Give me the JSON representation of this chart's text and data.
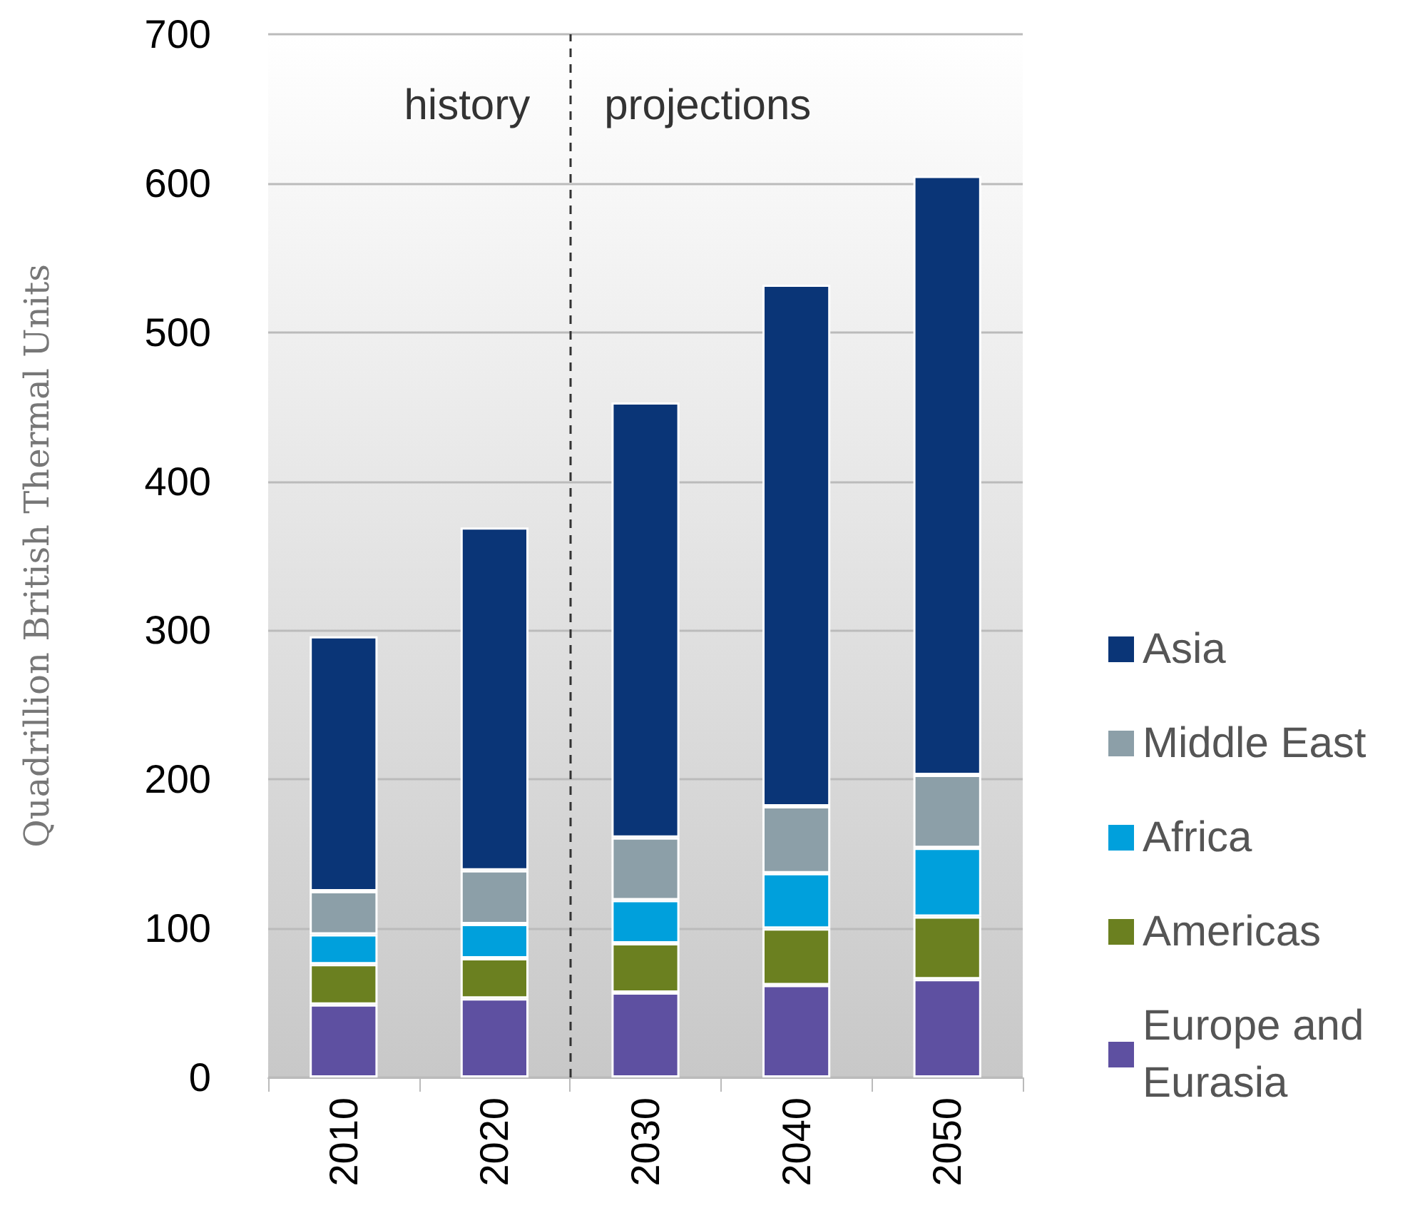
{
  "chart_data": {
    "type": "bar",
    "stacked": true,
    "ylabel": "Quadrillion British Thermal Units",
    "x": [
      2010,
      2020,
      2030,
      2040,
      2050
    ],
    "xlim": [
      2005,
      2055
    ],
    "xticks": [
      2010,
      2020,
      2030,
      2040,
      2050
    ],
    "ylim": [
      0,
      700
    ],
    "yticks": [
      0,
      100,
      200,
      300,
      400,
      500,
      600,
      700
    ],
    "grid": "y",
    "legend": "right",
    "series": [
      {
        "name": "Europe and Eurasia",
        "color": "#5e50a1",
        "values": [
          49,
          53,
          57,
          62,
          66
        ]
      },
      {
        "name": "Americas",
        "color": "#6b8020",
        "values": [
          27,
          27,
          33,
          38,
          42
        ]
      },
      {
        "name": "Africa",
        "color": "#00a0dc",
        "values": [
          20,
          23,
          29,
          37,
          46
        ]
      },
      {
        "name": "Middle East",
        "color": "#8c9fa8",
        "values": [
          29,
          36,
          42,
          45,
          49
        ]
      },
      {
        "name": "Asia",
        "color": "#0a3577",
        "values": [
          171,
          230,
          292,
          350,
          402
        ]
      }
    ],
    "ref_lines": [
      {
        "axis": "x",
        "value": 2025,
        "line_style": "dashed",
        "color": "#333333"
      }
    ],
    "annotations": [
      "history",
      "projections"
    ]
  }
}
